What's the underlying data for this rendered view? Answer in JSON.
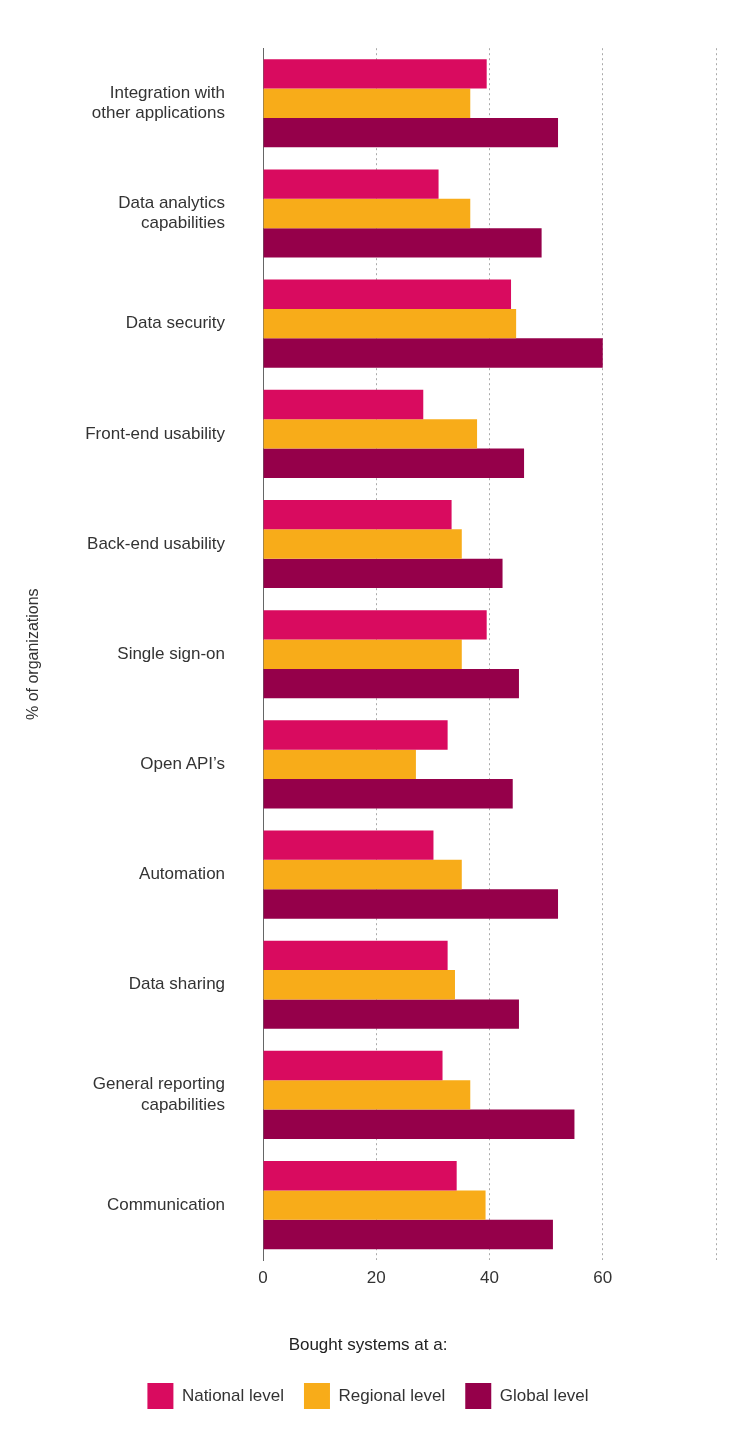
{
  "chart_data": {
    "type": "bar",
    "orientation": "horizontal",
    "ylabel": "% of organizations",
    "legend_title": "Bought systems at a:",
    "legend": "bottom",
    "grid": "x",
    "categories": [
      "Integration with other applications",
      "Data analytics capabilities",
      "Data security",
      "Front-end usability",
      "Back-end usability",
      "Single sign-on",
      "Open API’s",
      "Automation",
      "Data sharing",
      "General reporting capabilities",
      "Communication"
    ],
    "xlim": [
      0,
      80
    ],
    "xticks": [
      0,
      20,
      40,
      60,
      {
        "value": 80,
        "label": null
      }
    ],
    "series": [
      {
        "name": "National level",
        "color": "#d90b5f",
        "values": [
          39.5,
          31,
          43.8,
          28.3,
          33.3,
          39.5,
          32.6,
          30.1,
          32.6,
          31.7,
          34.2
        ]
      },
      {
        "name": "Regional level",
        "color": "#f8ac19",
        "values": [
          36.6,
          36.6,
          44.7,
          37.8,
          35.1,
          35.1,
          27,
          35.1,
          33.9,
          36.6,
          39.3
        ]
      },
      {
        "name": "Global level",
        "color": "#95004a",
        "values": [
          52.1,
          49.2,
          60,
          46.1,
          42.3,
          45.2,
          44.1,
          52.1,
          45.2,
          55,
          51.2
        ]
      }
    ]
  }
}
